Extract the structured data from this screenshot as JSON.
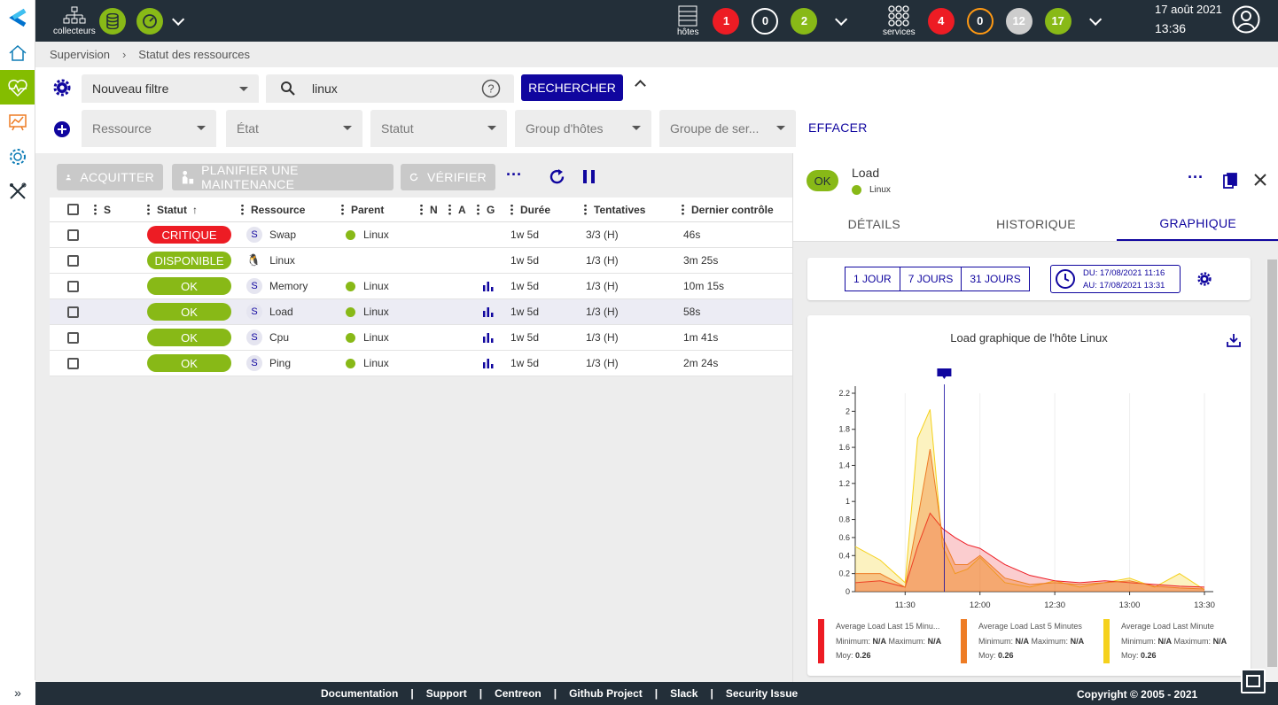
{
  "header": {
    "collectors_label": "collecteurs",
    "hosts_label": "hôtes",
    "services_label": "services",
    "hosts_counts": {
      "down": "1",
      "unreachable": "0",
      "up": "2"
    },
    "services_counts": {
      "critical": "4",
      "warning": "0",
      "unknown": "12",
      "ok": "17"
    },
    "date": "17 août 2021",
    "time": "13:36"
  },
  "breadcrumb": {
    "root": "Supervision",
    "current": "Statut des ressources"
  },
  "filters": {
    "filter_name": "Nouveau filtre",
    "search_value": "linux",
    "search_button": "RECHERCHER",
    "resource": "Ressource",
    "state": "État",
    "status": "Statut",
    "host_group": "Group d'hôtes",
    "service_group": "Groupe de ser...",
    "clear": "EFFACER"
  },
  "actions": {
    "acknowledge": "ACQUITTER",
    "downtime": "PLANIFIER UNE MAINTENANCE",
    "check": "VÉRIFIER"
  },
  "table": {
    "columns": [
      "S",
      "Statut",
      "Ressource",
      "Parent",
      "N",
      "A",
      "G",
      "Durée",
      "Tentatives",
      "Dernier contrôle"
    ],
    "rows": [
      {
        "status": "CRITIQUE",
        "type": "S",
        "resource": "Swap",
        "parent": "Linux",
        "duration": "1w 5d",
        "tries": "3/3 (H)",
        "last": "46s"
      },
      {
        "status": "DISPONIBLE",
        "type": "host",
        "resource": "Linux",
        "parent": "",
        "duration": "1w 5d",
        "tries": "1/3 (H)",
        "last": "3m 25s"
      },
      {
        "status": "OK",
        "type": "S",
        "resource": "Memory",
        "parent": "Linux",
        "duration": "1w 5d",
        "tries": "1/3 (H)",
        "last": "10m 15s"
      },
      {
        "status": "OK",
        "type": "S",
        "resource": "Load",
        "parent": "Linux",
        "duration": "1w 5d",
        "tries": "1/3 (H)",
        "last": "58s"
      },
      {
        "status": "OK",
        "type": "S",
        "resource": "Cpu",
        "parent": "Linux",
        "duration": "1w 5d",
        "tries": "1/3 (H)",
        "last": "1m 41s"
      },
      {
        "status": "OK",
        "type": "S",
        "resource": "Ping",
        "parent": "Linux",
        "duration": "1w 5d",
        "tries": "1/3 (H)",
        "last": "2m 24s"
      }
    ]
  },
  "panel": {
    "status": "OK",
    "title": "Load",
    "parent": "Linux",
    "tabs": [
      "DÉTAILS",
      "HISTORIQUE",
      "GRAPHIQUE"
    ],
    "periods": [
      "1 JOUR",
      "7 JOURS",
      "31 JOURS"
    ],
    "from": "DU:  17/08/2021 11:16",
    "to": "AU:  17/08/2021 13:31"
  },
  "chart_data": {
    "type": "area",
    "title": "Load graphique de l'hôte Linux",
    "x": [
      "11:10",
      "11:20",
      "11:30",
      "11:35",
      "11:40",
      "11:45",
      "11:50",
      "11:55",
      "12:00",
      "12:10",
      "12:20",
      "12:30",
      "12:40",
      "12:50",
      "13:00",
      "13:10",
      "13:20",
      "13:30"
    ],
    "x_ticks": [
      "11:30",
      "12:00",
      "12:30",
      "13:00",
      "13:30"
    ],
    "y_ticks": [
      "0",
      "0.2",
      "0.4",
      "0.6",
      "0.8",
      "1",
      "1.2",
      "1.4",
      "1.6",
      "1.8",
      "2",
      "2.2"
    ],
    "ylim": [
      0,
      2.2
    ],
    "series": [
      {
        "name": "Average Load Last 15 Minu...",
        "color": "#ed1c24",
        "values": [
          0.1,
          0.12,
          0.05,
          0.5,
          0.87,
          0.7,
          0.6,
          0.52,
          0.48,
          0.3,
          0.18,
          0.12,
          0.1,
          0.12,
          0.1,
          0.08,
          0.06,
          0.05
        ]
      },
      {
        "name": "Average Load Last 5 Minutes",
        "color": "#ee7c24",
        "values": [
          0.2,
          0.2,
          0.05,
          0.8,
          1.58,
          0.6,
          0.3,
          0.3,
          0.4,
          0.15,
          0.08,
          0.1,
          0.08,
          0.1,
          0.12,
          0.06,
          0.04,
          0.03
        ]
      },
      {
        "name": "Average Load Last Minute",
        "color": "#f5d11c",
        "values": [
          0.5,
          0.35,
          0.1,
          1.7,
          2.02,
          0.5,
          0.2,
          0.25,
          0.38,
          0.1,
          0.05,
          0.12,
          0.05,
          0.1,
          0.15,
          0.05,
          0.2,
          0.02
        ]
      }
    ],
    "stats": [
      {
        "min": "N/A",
        "max": "N/A",
        "avg": "0.26"
      },
      {
        "min": "N/A",
        "max": "N/A",
        "avg": "0.26"
      },
      {
        "min": "N/A",
        "max": "N/A",
        "avg": "0.26"
      }
    ],
    "labels": {
      "min": "Minimum:",
      "max": "Maximum:",
      "avg": "Moy:"
    }
  },
  "footer": {
    "links": [
      "Documentation",
      "Support",
      "Centreon",
      "Github Project",
      "Slack",
      "Security Issue"
    ],
    "copyright": "Copyright © 2005 - 2021"
  }
}
